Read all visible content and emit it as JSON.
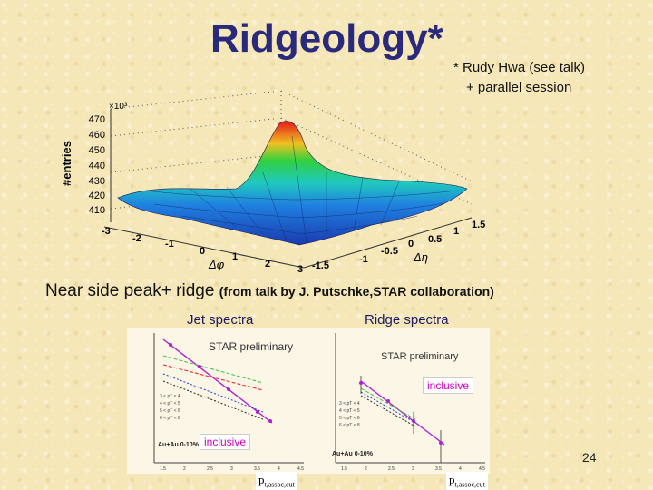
{
  "slide": {
    "title": "Ridgeology",
    "title_star": "*",
    "note_line1": "* Rudy Hwa (see talk)",
    "note_line2": "+ parallel session",
    "subtitle_main": "Near side peak+ ridge",
    "subtitle_paren": "(from talk by J. Putschke,STAR collaboration)",
    "slide_number": "24"
  },
  "surface_plot": {
    "ylabel": "#entries",
    "y_multiplier": "×10³",
    "y_ticks": [
      "470",
      "460",
      "450",
      "440",
      "430",
      "420",
      "410"
    ],
    "dphi_ticks": [
      "-3",
      "-2",
      "-1",
      "0",
      "1",
      "2",
      "3"
    ],
    "dphi_label": "Δφ",
    "deta_ticks": [
      "-1.5",
      "-1",
      "-0.5",
      "0",
      "0.5",
      "1",
      "1.5"
    ],
    "deta_label": "Δη"
  },
  "jet_panel": {
    "title": "Jet spectra",
    "preliminary": "STAR preliminary",
    "inclusive_label": "inclusive",
    "legend": [
      "3 < pT < 4",
      "4 < pT < 5",
      "5 < pT < 6",
      "6 < pT < 8"
    ],
    "system": "Au+Au 0-10%",
    "x_label": "p",
    "x_label_sub": "t,assoc,cut",
    "x_ticks": [
      "1.5",
      "2",
      "2.5",
      "3",
      "3.5",
      "4",
      "4.5"
    ]
  },
  "ridge_panel": {
    "title": "Ridge spectra",
    "preliminary": "STAR preliminary",
    "inclusive_label": "inclusive",
    "legend": [
      "3 < pT < 4",
      "4 < pT < 5",
      "5 < pT < 6",
      "6 < pT < 8"
    ],
    "system": "Au+Au 0-10%",
    "x_label": "p",
    "x_label_sub": "t,assoc,cut",
    "x_ticks": [
      "1.5",
      "2",
      "2.5",
      "3",
      "3.5",
      "4",
      "4.5"
    ]
  }
}
